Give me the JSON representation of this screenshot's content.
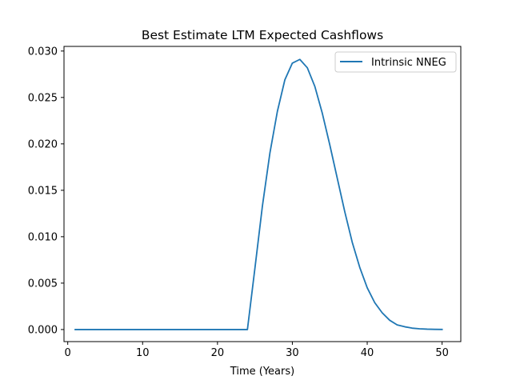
{
  "chart_data": {
    "type": "line",
    "title": "Best Estimate LTM Expected Cashflows",
    "xlabel": "Time (Years)",
    "ylabel": "",
    "xlim": [
      -0.5,
      52.5
    ],
    "ylim": [
      -0.0013,
      0.0305
    ],
    "xticks": [
      0,
      10,
      20,
      30,
      40,
      50
    ],
    "xtick_labels": [
      "0",
      "10",
      "20",
      "30",
      "40",
      "50"
    ],
    "yticks": [
      0.0,
      0.005,
      0.01,
      0.015,
      0.02,
      0.025,
      0.03
    ],
    "ytick_labels": [
      "0.000",
      "0.005",
      "0.010",
      "0.015",
      "0.020",
      "0.025",
      "0.030"
    ],
    "grid": false,
    "legend_position": "top-right",
    "series": [
      {
        "name": "Intrinsic NNEG",
        "color": "#1f77b4",
        "x": [
          1,
          2,
          3,
          4,
          5,
          6,
          7,
          8,
          9,
          10,
          11,
          12,
          13,
          14,
          15,
          16,
          17,
          18,
          19,
          20,
          21,
          22,
          23,
          24,
          25,
          26,
          27,
          28,
          29,
          30,
          31,
          32,
          33,
          34,
          35,
          36,
          37,
          38,
          39,
          40,
          41,
          42,
          43,
          44,
          45,
          46,
          47,
          48,
          49,
          50
        ],
        "y": [
          0,
          0,
          0,
          0,
          0,
          0,
          0,
          0,
          0,
          0,
          0,
          0,
          0,
          0,
          0,
          0,
          0,
          0,
          0,
          0,
          0,
          0,
          0,
          0,
          0.0066,
          0.0133,
          0.019,
          0.0235,
          0.0269,
          0.0287,
          0.0291,
          0.0282,
          0.0262,
          0.0233,
          0.0199,
          0.0163,
          0.0127,
          0.0094,
          0.0067,
          0.0045,
          0.0029,
          0.0018,
          0.001,
          0.0005,
          0.0003,
          0.00015,
          8e-05,
          4e-05,
          2e-05,
          1e-05
        ]
      }
    ]
  }
}
